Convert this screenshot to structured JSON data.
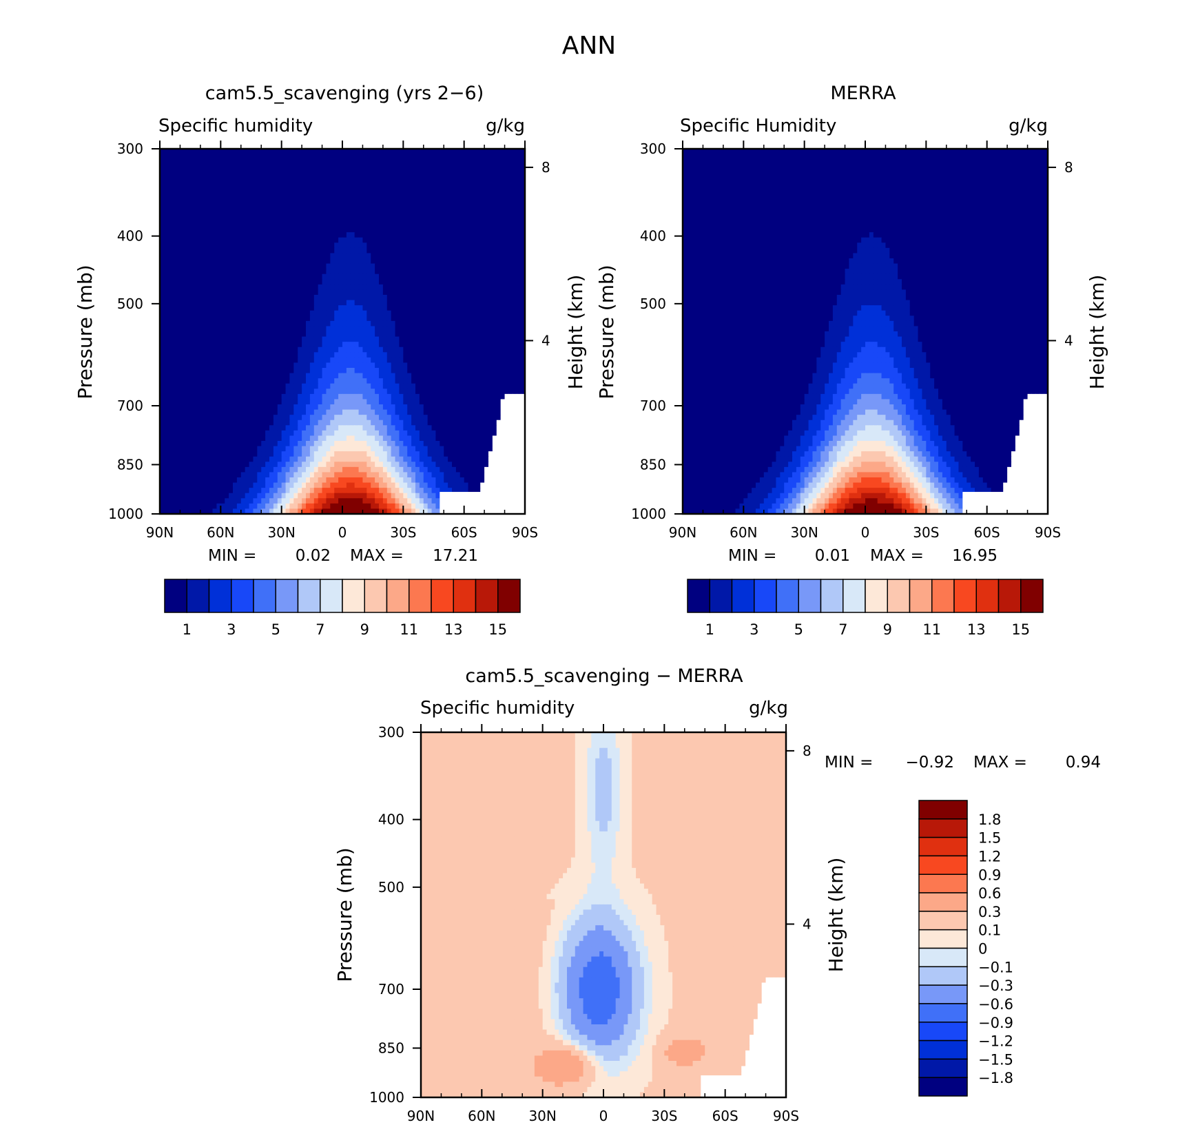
{
  "figure": {
    "title": "ANN"
  },
  "panels": [
    {
      "id": "model",
      "title": "cam5.5_scavenging (yrs 2−6)",
      "left_label": "Specific humidity",
      "right_label": "g/kg",
      "min_text": "MIN =",
      "min_value": "0.02",
      "max_text": "MAX =",
      "max_value": "17.21",
      "field_max": 17.21
    },
    {
      "id": "obs",
      "title": "MERRA",
      "left_label": "Specific Humidity",
      "right_label": "g/kg",
      "min_text": "MIN =",
      "min_value": "0.01",
      "max_text": "MAX =",
      "max_value": "16.95",
      "field_max": 16.95
    },
    {
      "id": "diff",
      "title": "cam5.5_scavenging − MERRA",
      "left_label": "Specific humidity",
      "right_label": "g/kg",
      "min_text": "MIN =",
      "min_value": "−0.92",
      "max_text": "MAX =",
      "max_value": "0.94"
    }
  ],
  "chart_data": [
    {
      "type": "heatmap",
      "panel": "model",
      "title": "cam5.5_scavenging (yrs 2−6)",
      "xlabel": "",
      "ylabel": "Pressure (mb)",
      "y2label": "Height (km)",
      "x_ticks": [
        "90N",
        "60N",
        "30N",
        "0",
        "30S",
        "60S",
        "90S"
      ],
      "x_range": [
        90,
        -90
      ],
      "y_ticks": [
        300,
        400,
        500,
        700,
        850,
        1000
      ],
      "y_range": [
        1000,
        300
      ],
      "y_scale": "log",
      "y2_ticks": [
        8,
        4
      ],
      "levels": [
        1,
        2,
        3,
        4,
        5,
        6,
        7,
        8,
        9,
        10,
        11,
        12,
        13,
        14,
        15
      ],
      "min": 0.02,
      "max": 17.21
    },
    {
      "type": "heatmap",
      "panel": "obs",
      "title": "MERRA",
      "xlabel": "",
      "ylabel": "Pressure (mb)",
      "y2label": "Height (km)",
      "x_ticks": [
        "90N",
        "60N",
        "30N",
        "0",
        "30S",
        "60S",
        "90S"
      ],
      "x_range": [
        90,
        -90
      ],
      "y_ticks": [
        300,
        400,
        500,
        700,
        850,
        1000
      ],
      "y_range": [
        1000,
        300
      ],
      "y_scale": "log",
      "y2_ticks": [
        8,
        4
      ],
      "levels": [
        1,
        2,
        3,
        4,
        5,
        6,
        7,
        8,
        9,
        10,
        11,
        12,
        13,
        14,
        15
      ],
      "min": 0.01,
      "max": 16.95
    },
    {
      "type": "heatmap",
      "panel": "diff",
      "title": "cam5.5_scavenging − MERRA",
      "xlabel": "",
      "ylabel": "Pressure (mb)",
      "y2label": "Height (km)",
      "x_ticks": [
        "90N",
        "60N",
        "30N",
        "0",
        "30S",
        "60S",
        "90S"
      ],
      "x_range": [
        90,
        -90
      ],
      "y_ticks": [
        300,
        400,
        500,
        700,
        850,
        1000
      ],
      "y_range": [
        1000,
        300
      ],
      "y_scale": "log",
      "y2_ticks": [
        8,
        4
      ],
      "levels": [
        -1.8,
        -1.5,
        -1.2,
        -0.9,
        -0.6,
        -0.3,
        -0.1,
        0,
        0.1,
        0.3,
        0.6,
        0.9,
        1.2,
        1.5,
        1.8
      ],
      "min": -0.92,
      "max": 0.94
    }
  ],
  "colorbars": {
    "abs": {
      "colors": [
        "#000080",
        "#0018a8",
        "#0030d8",
        "#1848f8",
        "#4070f8",
        "#7898f8",
        "#b0c8f8",
        "#d8e8f8",
        "#fde8d8",
        "#fcc8b0",
        "#fca888",
        "#fc7850",
        "#f84820",
        "#e03010",
        "#b81808",
        "#800000"
      ],
      "labels": [
        "1",
        "3",
        "5",
        "7",
        "9",
        "11",
        "13",
        "15"
      ]
    },
    "diff": {
      "colors": [
        "#800000",
        "#b81808",
        "#e03010",
        "#f84820",
        "#fc7850",
        "#fca888",
        "#fcc8b0",
        "#fde8d8",
        "#d8e8f8",
        "#b0c8f8",
        "#7898f8",
        "#4070f8",
        "#1848f8",
        "#0030d8",
        "#0018a8",
        "#000080"
      ],
      "labels": [
        "1.8",
        "1.5",
        "1.2",
        "0.9",
        "0.6",
        "0.3",
        "0.1",
        "0",
        "−0.1",
        "−0.3",
        "−0.6",
        "−0.9",
        "−1.2",
        "−1.5",
        "−1.8"
      ]
    }
  },
  "colors": {
    "missing": "#ffffff",
    "axis": "#000000"
  }
}
